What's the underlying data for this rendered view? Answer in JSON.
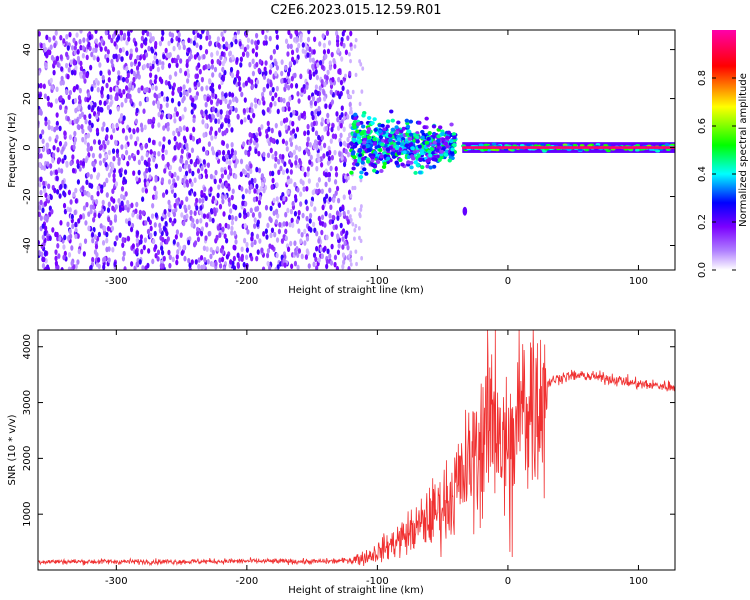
{
  "title": "C2E6.2023.015.12.59.R01",
  "chart_data": [
    {
      "type": "heatmap",
      "xlabel": "Height of straight line (km)",
      "ylabel": "Frequency (Hz)",
      "xlim": [
        -360,
        128
      ],
      "ylim": [
        -50,
        48
      ],
      "xticks": [
        -300,
        -200,
        -100,
        0,
        100
      ],
      "yticks": [
        -40,
        -20,
        0,
        20,
        40
      ],
      "colorbar": {
        "label": "Normalized spectral amplitude",
        "range": [
          0,
          1
        ],
        "ticks": [
          0.0,
          0.2,
          0.4,
          0.6,
          0.8
        ],
        "colors": [
          "#ffffff",
          "#7b00ff",
          "#0000ff",
          "#00ffff",
          "#00ff00",
          "#ffff00",
          "#ff0000",
          "#ff00aa"
        ]
      },
      "regions": {
        "noise": {
          "x_range": [
            -360,
            -120
          ],
          "freq_range": [
            -50,
            48
          ],
          "amplitude": 0.1
        },
        "scattered_returns": {
          "x_range": [
            -120,
            -40
          ],
          "center_freq": 2,
          "amplitude": 0.4
        },
        "carrier": {
          "x_range": [
            -35,
            128
          ],
          "freq": 0,
          "amplitude": 0.95
        },
        "isolated_blob": {
          "x": -33,
          "freq": -26,
          "amplitude": 0.2
        }
      },
      "grid": false
    },
    {
      "type": "line",
      "xlabel": "Height of straight line (km)",
      "ylabel": "SNR (10 * v/v)",
      "xlim": [
        -360,
        128
      ],
      "ylim": [
        0,
        4300
      ],
      "xticks": [
        -300,
        -200,
        -100,
        0,
        100
      ],
      "yticks": [
        1000,
        2000,
        3000,
        4000
      ],
      "series": [
        {
          "color": "#f03030",
          "x": [
            -360,
            -300,
            -250,
            -200,
            -150,
            -130,
            -120,
            -110,
            -100,
            -90,
            -80,
            -70,
            -60,
            -50,
            -40,
            -30,
            -20,
            -15,
            -10,
            -5,
            0,
            5,
            10,
            20,
            30,
            40,
            50,
            60,
            80,
            100,
            128
          ],
          "y": [
            150,
            150,
            150,
            160,
            150,
            160,
            180,
            220,
            320,
            450,
            600,
            750,
            950,
            1150,
            1450,
            1850,
            2300,
            2600,
            2900,
            2500,
            1800,
            2400,
            2900,
            3100,
            3350,
            3450,
            3480,
            3480,
            3420,
            3330,
            3280
          ]
        }
      ],
      "grid": false
    }
  ]
}
